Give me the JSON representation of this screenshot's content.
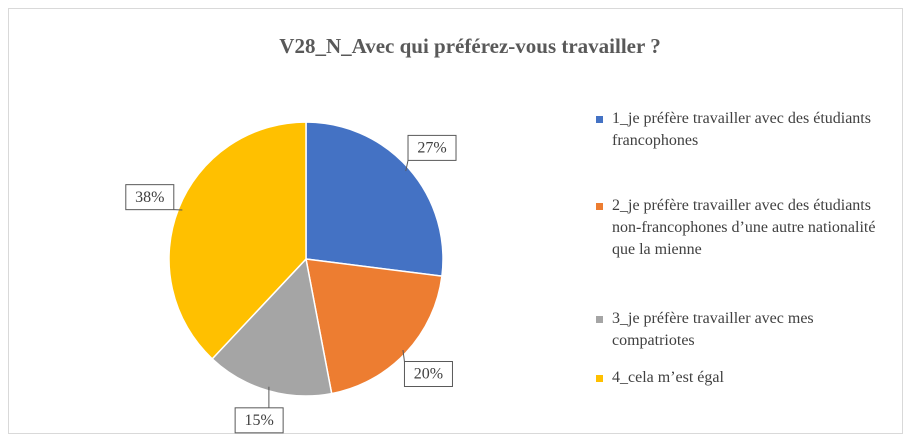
{
  "chart_data": {
    "type": "pie",
    "title": "V28_N_Avec qui préférez-vous travailler  ?",
    "categories": [
      "1_je préfère travailler avec des étudiants francophones",
      "2_je préfère travailler avec des étudiants non-francophones d’une autre nationalité que la mienne",
      "3_je préfère travailler avec mes compatriotes",
      "4_cela m’est égal"
    ],
    "values": [
      27,
      20,
      15,
      38
    ],
    "value_labels": [
      "27%",
      "20%",
      "15%",
      "38%"
    ],
    "colors": [
      "#4472c4",
      "#ed7d31",
      "#a5a5a5",
      "#ffc000"
    ],
    "legend": "right"
  }
}
